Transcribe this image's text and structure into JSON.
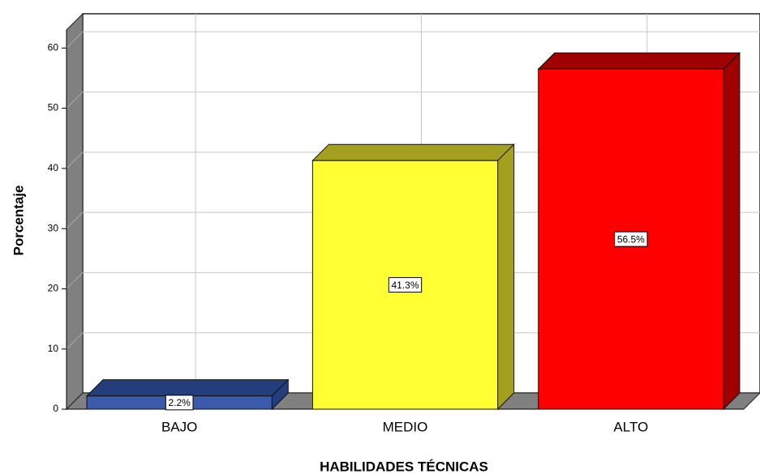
{
  "chart_data": {
    "type": "bar3d",
    "x_label": "HABILIDADES TÉCNICAS",
    "y_label": "Porcentaje",
    "categories": [
      "BAJO",
      "MEDIO",
      "ALTO"
    ],
    "values": [
      2.2,
      41.3,
      56.5
    ],
    "value_labels": [
      "2.2%",
      "41.3%",
      "56.5%"
    ],
    "colors": [
      "#3a5bab",
      "#ffff33",
      "#ff0000"
    ],
    "shade_colors": [
      "#233e7a",
      "#a3a020",
      "#a00000"
    ],
    "ylim": [
      0,
      63
    ],
    "yticks": [
      0,
      10,
      20,
      30,
      40,
      50,
      60
    ],
    "grid": true
  }
}
